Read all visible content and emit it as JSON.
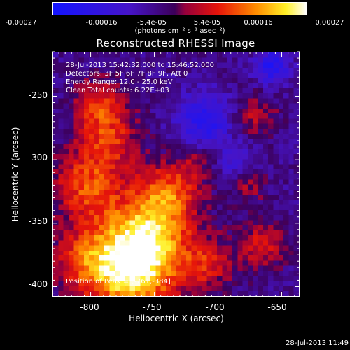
{
  "colorbar": {
    "ticks": [
      "-0.00027",
      "-0.00016",
      "-5.4e-05",
      "5.4e-05",
      "0.00016",
      "0.00027"
    ],
    "units": "(photons cm⁻² s⁻¹ asec⁻²)"
  },
  "info": {
    "time_range": "28-Jul-2013 15:42:32.000 to 15:46:52.000",
    "detectors": "Detectors: 3F 5F 6F 7F 8F 9F, Att 0",
    "energy": "Energy Range: 12.0 - 25.0 keV",
    "method": "Clean    Total counts: 6.22E+03",
    "peak": "Position of Peak = [-761,-384]"
  },
  "footer": {
    "timestamp": "28-Jul-2013 11:49"
  },
  "colors": {
    "background": "#000000",
    "text": "#ffffff"
  },
  "chart_data": {
    "type": "heatmap",
    "title": "Reconstructed RHESSI Image",
    "xlabel": "Heliocentric X (arcsec)",
    "ylabel": "Heliocentric Y (arcsec)",
    "xlim": [
      -830,
      -636
    ],
    "ylim": [
      -408,
      -215
    ],
    "xticks": [
      -800,
      -750,
      -700,
      -650
    ],
    "yticks": [
      -250,
      -300,
      -350,
      -400
    ],
    "color_range": [
      -0.00027,
      0.00027
    ],
    "colormap": "blue-purple-red-yellow-white",
    "peak_position": [
      -761,
      -384
    ]
  }
}
